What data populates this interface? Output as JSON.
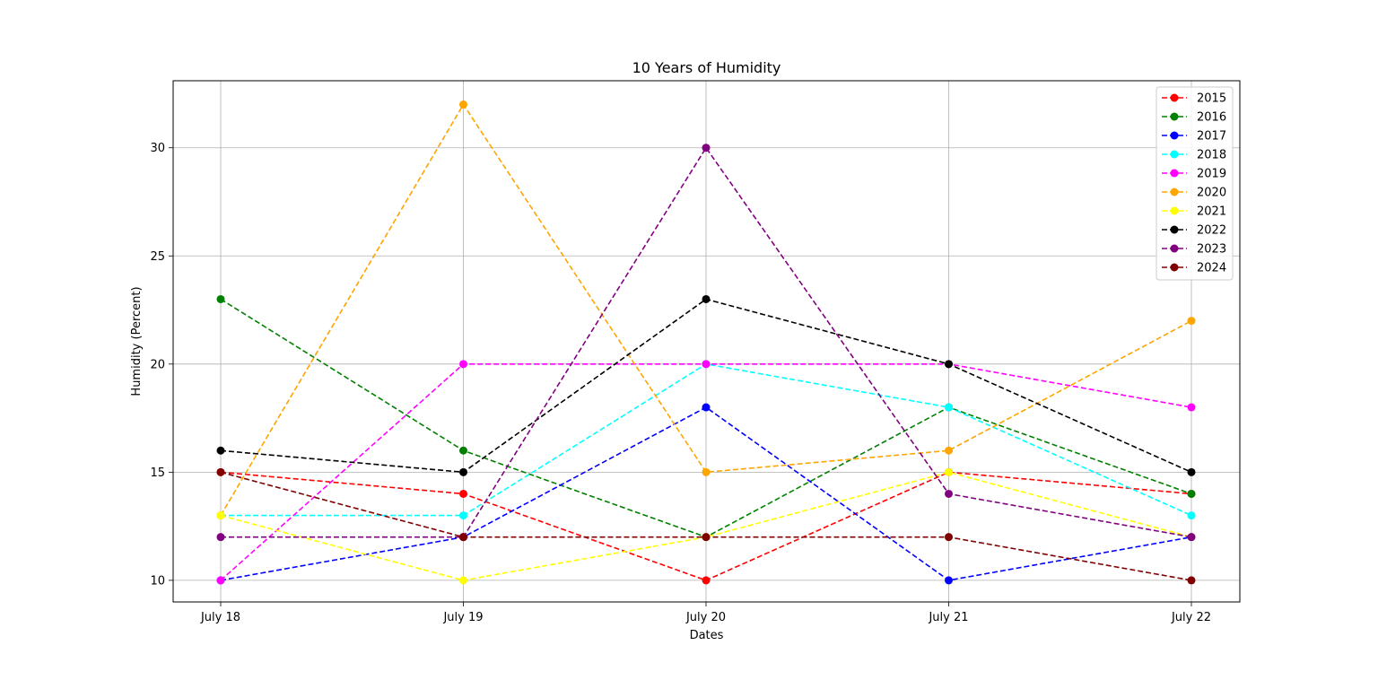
{
  "chart_data": {
    "type": "line",
    "title": "10 Years of Humidity",
    "xlabel": "Dates",
    "ylabel": "Humidity (Percent)",
    "categories": [
      "July 18",
      "July 19",
      "July 20",
      "July 21",
      "July 22"
    ],
    "ylim": [
      9.0,
      33.1
    ],
    "yticks": [
      10,
      15,
      20,
      25,
      30
    ],
    "grid": true,
    "legend_position": "top-right",
    "line_style": "dashed",
    "marker": "circle",
    "series": [
      {
        "name": "2015",
        "color": "#ff0000",
        "values": [
          15,
          14,
          10,
          15,
          14
        ]
      },
      {
        "name": "2016",
        "color": "#008000",
        "values": [
          23,
          16,
          12,
          18,
          14
        ]
      },
      {
        "name": "2017",
        "color": "#0000ff",
        "values": [
          10,
          12,
          18,
          10,
          12
        ]
      },
      {
        "name": "2018",
        "color": "#00ffff",
        "values": [
          13,
          13,
          20,
          18,
          13
        ]
      },
      {
        "name": "2019",
        "color": "#ff00ff",
        "values": [
          10,
          20,
          20,
          20,
          18
        ]
      },
      {
        "name": "2020",
        "color": "#ffa500",
        "values": [
          13,
          32,
          15,
          16,
          22
        ]
      },
      {
        "name": "2021",
        "color": "#ffff00",
        "values": [
          13,
          10,
          12,
          15,
          12
        ]
      },
      {
        "name": "2022",
        "color": "#000000",
        "values": [
          16,
          15,
          23,
          20,
          15
        ]
      },
      {
        "name": "2023",
        "color": "#800080",
        "values": [
          12,
          12,
          30,
          14,
          12
        ]
      },
      {
        "name": "2024",
        "color": "#800000",
        "values": [
          15,
          12,
          12,
          12,
          10
        ]
      }
    ]
  }
}
